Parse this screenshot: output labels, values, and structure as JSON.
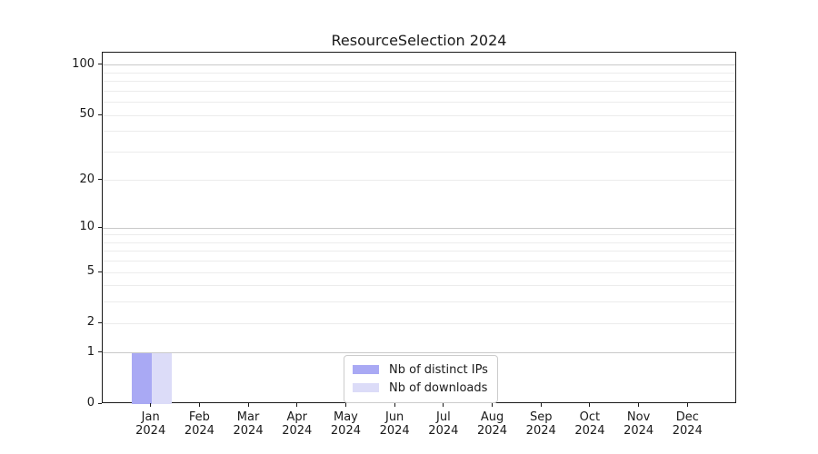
{
  "chart_data": {
    "type": "bar",
    "title": "ResourceSelection 2024",
    "categories": [
      "Jan 2024",
      "Feb 2024",
      "Mar 2024",
      "Apr 2024",
      "May 2024",
      "Jun 2024",
      "Jul 2024",
      "Aug 2024",
      "Sep 2024",
      "Oct 2024",
      "Nov 2024",
      "Dec 2024"
    ],
    "x_tick_months": [
      "Jan",
      "Feb",
      "Mar",
      "Apr",
      "May",
      "Jun",
      "Jul",
      "Aug",
      "Sep",
      "Oct",
      "Nov",
      "Dec"
    ],
    "x_tick_year": "2024",
    "series": [
      {
        "name": "Nb of distinct IPs",
        "color": "#a9a9f4",
        "values": [
          1,
          0,
          0,
          0,
          0,
          0,
          0,
          0,
          0,
          0,
          0,
          0
        ]
      },
      {
        "name": "Nb of downloads",
        "color": "#dcdcf8",
        "values": [
          1,
          0,
          0,
          0,
          0,
          0,
          0,
          0,
          0,
          0,
          0,
          0
        ]
      }
    ],
    "yscale": "log1p",
    "ylim": [
      0,
      120
    ],
    "ytick_values": [
      0,
      1,
      2,
      5,
      10,
      20,
      50,
      100
    ],
    "ytick_labels": [
      "0",
      "1",
      "2",
      "5",
      "10",
      "20",
      "50",
      "100"
    ],
    "grid": {
      "minor_values": [
        2,
        3,
        4,
        5,
        6,
        7,
        8,
        9,
        20,
        30,
        40,
        50,
        60,
        70,
        80,
        90
      ],
      "major_values": [
        1,
        10,
        100
      ],
      "minor_color": "#ececec",
      "major_color": "#c9c9c9"
    },
    "legend": {
      "entries": [
        "Nb of distinct IPs",
        "Nb of downloads"
      ],
      "position": "lower-center"
    },
    "colors": {
      "spine": "#1a1a1a",
      "text": "#1a1a1a"
    }
  }
}
